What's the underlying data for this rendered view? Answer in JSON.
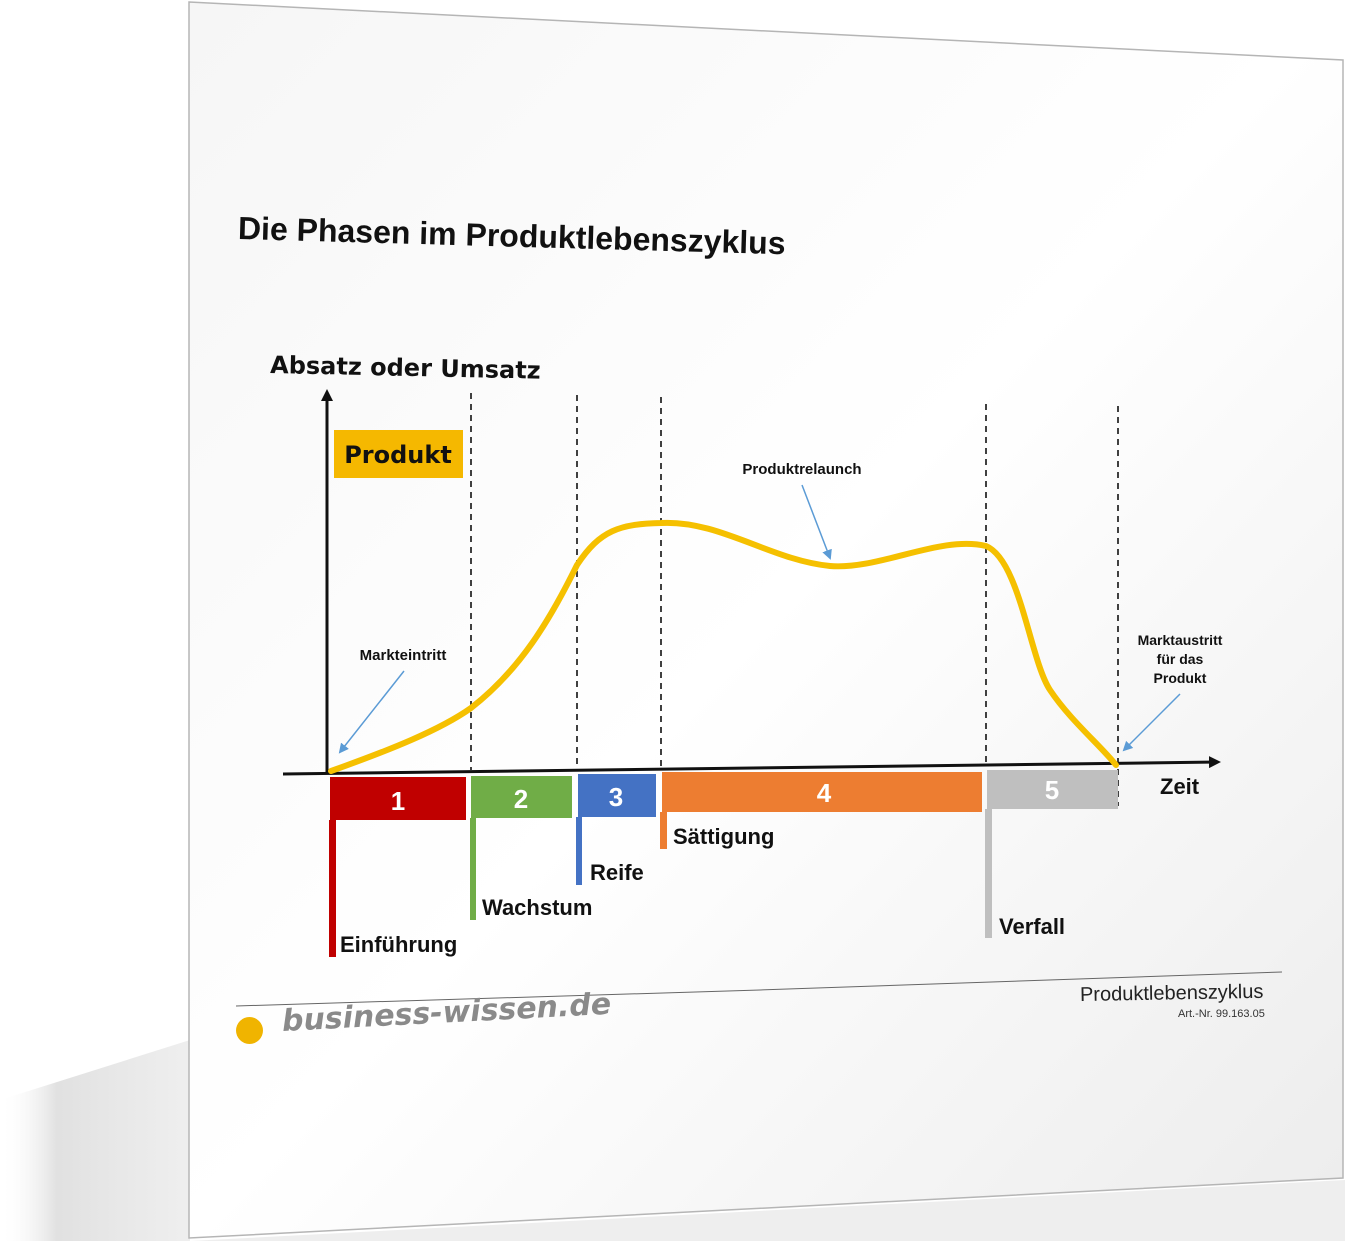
{
  "title": "Die Phasen im Produktlebenszyklus",
  "y_axis_label": "Absatz oder Umsatz",
  "x_axis_label": "Zeit",
  "product_badge": "Produkt",
  "annotations": {
    "market_entry": "Markteintritt",
    "relaunch": "Produktrelaunch",
    "market_exit": [
      "Marktaustritt",
      "für das",
      "Produkt"
    ]
  },
  "phases": [
    {
      "number": "1",
      "name": "Einführung",
      "color": "#c00000"
    },
    {
      "number": "2",
      "name": "Wachstum",
      "color": "#70ad47"
    },
    {
      "number": "3",
      "name": "Reife",
      "color": "#4472c4"
    },
    {
      "number": "4",
      "name": "Sättigung",
      "color": "#ed7d31"
    },
    {
      "number": "5",
      "name": "Verfall",
      "color": "#bfbfbf"
    }
  ],
  "curve_color": "#f5c000",
  "badge_color": "#f5b800",
  "arrow_color": "#5b9bd5",
  "footer": {
    "brand": "business-wissen.de",
    "doc_title": "Produktlebenszyklus",
    "article_no": "Art.-Nr. 99.163.05"
  }
}
